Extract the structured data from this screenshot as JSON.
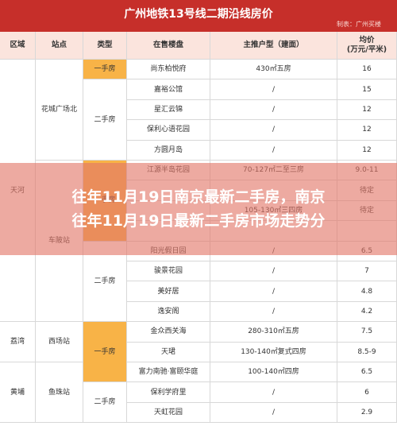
{
  "header": {
    "title": "广州地铁13号线二期沿线房价",
    "credit": "制表：广州买楼"
  },
  "table": {
    "columns": [
      "区域",
      "站点",
      "类型",
      "在售楼盘",
      "主推户型（建面）",
      "均价"
    ],
    "price_unit": "(万元/平米)",
    "districts": [
      {
        "name": "天河",
        "span": 13
      },
      {
        "name": "荔湾",
        "span": 2
      },
      {
        "name": "黄埔",
        "span": 3
      }
    ],
    "stations": [
      {
        "name": "花城广场北",
        "span": 5
      },
      {
        "name": "车陂站",
        "span": 8
      },
      {
        "name": "西场站",
        "span": 2
      },
      {
        "name": "鱼珠站",
        "span": 3
      }
    ],
    "types": [
      {
        "name": "一手房",
        "span": 1,
        "new": true
      },
      {
        "name": "二手房",
        "span": 4
      },
      {
        "name": "一手房",
        "span": 4,
        "new": true
      },
      {
        "name": "二手房",
        "span": 4
      },
      {
        "name": "一手房",
        "span": 3,
        "new": true
      },
      {
        "name": "二手房",
        "span": 2
      }
    ],
    "rows": [
      {
        "estate": "尚东柏悦府",
        "plan": "430㎡五房",
        "price": "16"
      },
      {
        "estate": "嘉裕公馆",
        "plan": "/",
        "price": "15"
      },
      {
        "estate": "星汇云锦",
        "plan": "/",
        "price": "12"
      },
      {
        "estate": "保利心语花园",
        "plan": "/",
        "price": "12"
      },
      {
        "estate": "方圆月岛",
        "plan": "/",
        "price": "12"
      },
      {
        "estate": "江源半岛花园",
        "plan": "70-127㎡二至三房",
        "price": "9.0-11"
      },
      {
        "price": "待定"
      },
      {
        "plan": "105-130㎡三四房",
        "price": "待定"
      },
      {},
      {
        "estate": "阳光假日园",
        "plan": "/",
        "price": "6.5"
      },
      {
        "estate": "骏景花园",
        "plan": "/",
        "price": "7"
      },
      {
        "estate": "美好居",
        "plan": "/",
        "price": "4.8"
      },
      {
        "estate": "逸安阁",
        "plan": "/",
        "price": "4.2"
      },
      {
        "estate": "金众西关海",
        "plan": "280-310㎡五房",
        "price": "7.5"
      },
      {
        "estate": "天珺",
        "plan": "130-140㎡复式四房",
        "price": "8.5-9"
      },
      {
        "estate": "富力南驰·富颐华庭",
        "plan": "100-140㎡四房",
        "price": "6.5"
      },
      {
        "estate": "保利学府里",
        "plan": "/",
        "price": "6"
      },
      {
        "estate": "天虹花园",
        "plan": "/",
        "price": "2.9"
      }
    ]
  },
  "overlay": [
    "往年11月19日南京最新二手房，南京",
    "往年11月19日最新二手房市场走势分"
  ]
}
